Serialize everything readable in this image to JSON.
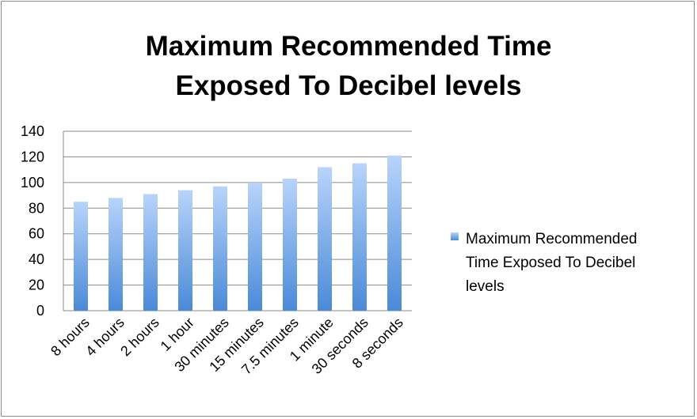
{
  "chart_data": {
    "type": "bar",
    "title_lines": [
      "Maximum Recommended Time",
      "Exposed To Decibel levels"
    ],
    "categories": [
      "8 hours",
      "4 hours",
      "2 hours",
      "1 hour",
      "30 minutes",
      "15 minutes",
      "7.5 minutes",
      "1 minute",
      "30 seconds",
      "8 seconds"
    ],
    "series": [
      {
        "name": "Maximum Recommended Time Exposed To Decibel levels",
        "values": [
          85,
          88,
          91,
          94,
          97,
          100,
          103,
          112,
          115,
          121
        ]
      }
    ],
    "ylim": [
      0,
      140
    ],
    "yticks": [
      0,
      20,
      40,
      60,
      80,
      100,
      120,
      140
    ],
    "grid": true,
    "legend": "right",
    "legend_lines": [
      "Maximum Recommended",
      "Time Exposed To Decibel",
      "levels"
    ],
    "colors": {
      "bar_top": "#b8d4fb",
      "bar_bottom": "#4a8ad8",
      "grid": "#8a8a8a",
      "border": "#8c8c8c"
    }
  }
}
